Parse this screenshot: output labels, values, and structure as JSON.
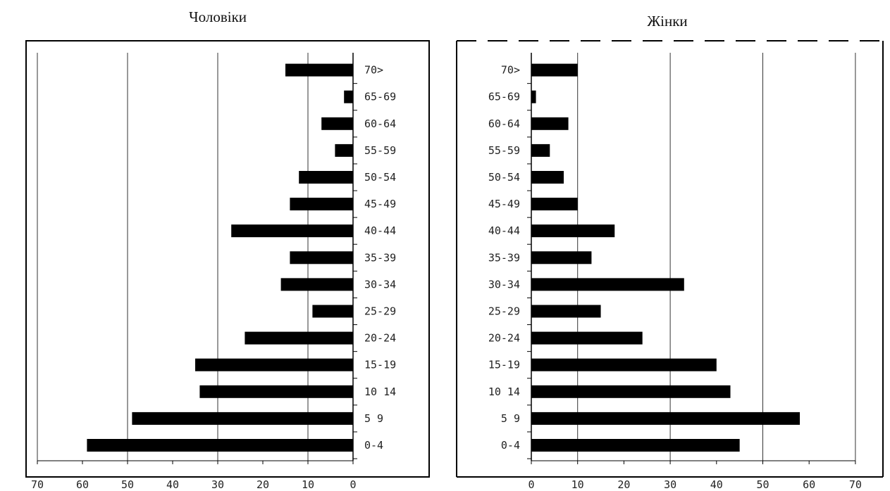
{
  "chart_data": [
    {
      "type": "bar",
      "orientation": "horizontal",
      "title": "Чоловіки",
      "categories": [
        "0-4",
        "5 9",
        "10 14",
        "15-19",
        "20-24",
        "25-29",
        "30-34",
        "35-39",
        "40-44",
        "45-49",
        "50-54",
        "55-59",
        "60-64",
        "65-69",
        "70>"
      ],
      "values": [
        59,
        49,
        34,
        35,
        24,
        9,
        16,
        14,
        27,
        14,
        12,
        4,
        7,
        2,
        15
      ],
      "xlim": [
        0,
        70
      ],
      "x_reversed": true,
      "xticks": [
        "70",
        "60",
        "50",
        "40",
        "30",
        "20",
        "10",
        "0"
      ],
      "grid": "vertical",
      "bar_color": "#000000"
    },
    {
      "type": "bar",
      "orientation": "horizontal",
      "title": "Жінки",
      "categories": [
        "0-4",
        "5 9",
        "10 14",
        "15-19",
        "20-24",
        "25-29",
        "30-34",
        "35-39",
        "40-44",
        "45-49",
        "50-54",
        "55-59",
        "60-64",
        "65-69",
        "70>"
      ],
      "values": [
        45,
        58,
        43,
        40,
        24,
        15,
        33,
        13,
        18,
        10,
        7,
        4,
        8,
        1,
        10
      ],
      "xlim": [
        0,
        70
      ],
      "x_reversed": false,
      "xticks": [
        "0",
        "10",
        "20",
        "30",
        "40",
        "50",
        "60",
        "70"
      ],
      "grid": "vertical",
      "bar_color": "#000000"
    }
  ]
}
